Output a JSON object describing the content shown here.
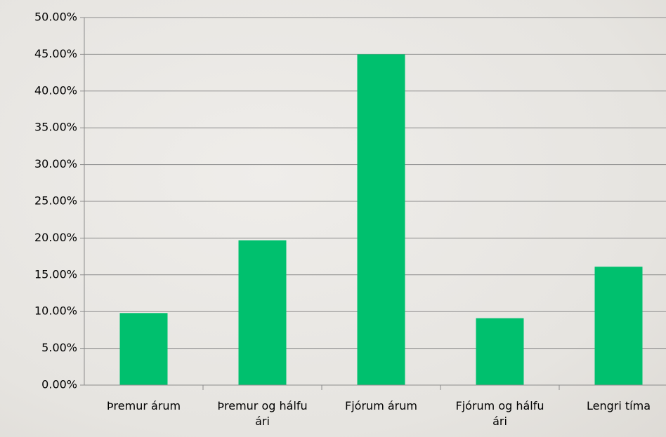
{
  "chart_data": {
    "type": "bar",
    "categories": [
      "Þremur árum",
      "Þremur og hálfu ári",
      "Fjórum árum",
      "Fjórum og hálfu ári",
      "Lengri tíma"
    ],
    "values": [
      9.8,
      19.7,
      45.0,
      9.1,
      16.1
    ],
    "color": "#00c06e",
    "ylim": [
      0,
      50
    ],
    "yticks": [
      {
        "value": 0,
        "label": "0.00%"
      },
      {
        "value": 5,
        "label": "5.00%"
      },
      {
        "value": 10,
        "label": "10.00%"
      },
      {
        "value": 15,
        "label": "15.00%"
      },
      {
        "value": 20,
        "label": "20.00%"
      },
      {
        "value": 25,
        "label": "25.00%"
      },
      {
        "value": 30,
        "label": "30.00%"
      },
      {
        "value": 35,
        "label": "35.00%"
      },
      {
        "value": 40,
        "label": "40.00%"
      },
      {
        "value": 45,
        "label": "45.00%"
      },
      {
        "value": 50,
        "label": "50.00%"
      }
    ],
    "grid": true
  }
}
